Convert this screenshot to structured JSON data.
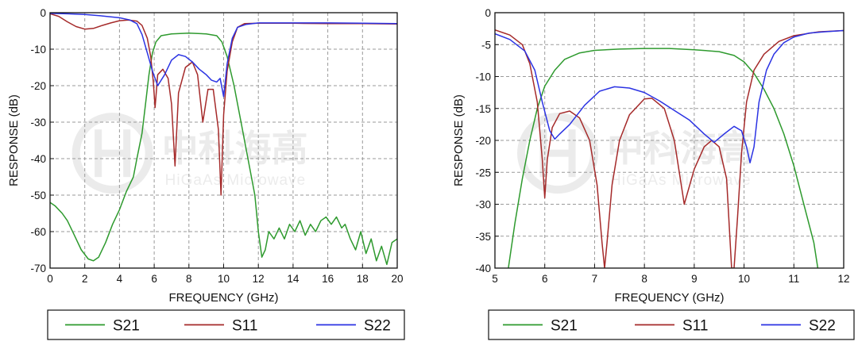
{
  "chart_data": [
    {
      "type": "line",
      "xlabel": "FREQUENCY (GHz)",
      "ylabel": "RESPONSE (dB)",
      "xlim": [
        0,
        20
      ],
      "ylim": [
        -70,
        0
      ],
      "xticks": [
        0,
        2,
        4,
        6,
        8,
        10,
        12,
        14,
        16,
        18,
        20
      ],
      "yticks": [
        0,
        -10,
        -20,
        -30,
        -40,
        -50,
        -60,
        -70
      ],
      "grid": true,
      "legend_position": "bottom",
      "watermark": {
        "title": "中科海高",
        "subtitle": "HiGaAs Microwave"
      },
      "series": [
        {
          "name": "S21",
          "color": "#2e9a2e",
          "points": [
            [
              0,
              -52
            ],
            [
              0.3,
              -53
            ],
            [
              0.7,
              -55
            ],
            [
              1.0,
              -57
            ],
            [
              1.4,
              -61
            ],
            [
              1.8,
              -65
            ],
            [
              2.2,
              -67.5
            ],
            [
              2.5,
              -68
            ],
            [
              2.8,
              -67
            ],
            [
              3.2,
              -63
            ],
            [
              3.6,
              -58
            ],
            [
              4.0,
              -54
            ],
            [
              4.4,
              -49
            ],
            [
              4.8,
              -45
            ],
            [
              5.0,
              -40
            ],
            [
              5.3,
              -33
            ],
            [
              5.5,
              -25
            ],
            [
              5.7,
              -17
            ],
            [
              5.9,
              -11
            ],
            [
              6.1,
              -8
            ],
            [
              6.4,
              -6.3
            ],
            [
              7,
              -5.8
            ],
            [
              8,
              -5.6
            ],
            [
              9,
              -5.8
            ],
            [
              9.6,
              -6.3
            ],
            [
              9.9,
              -8
            ],
            [
              10.2,
              -12
            ],
            [
              10.6,
              -20
            ],
            [
              11.0,
              -30
            ],
            [
              11.4,
              -40
            ],
            [
              11.8,
              -50
            ],
            [
              12.0,
              -60
            ],
            [
              12.2,
              -67
            ],
            [
              12.4,
              -65
            ],
            [
              12.6,
              -60
            ],
            [
              12.9,
              -62
            ],
            [
              13.2,
              -59
            ],
            [
              13.5,
              -62
            ],
            [
              13.8,
              -58
            ],
            [
              14.1,
              -60
            ],
            [
              14.4,
              -57
            ],
            [
              14.7,
              -61
            ],
            [
              15.0,
              -58
            ],
            [
              15.3,
              -60
            ],
            [
              15.6,
              -57
            ],
            [
              15.9,
              -56
            ],
            [
              16.2,
              -58
            ],
            [
              16.5,
              -56
            ],
            [
              16.8,
              -59
            ],
            [
              17.0,
              -58
            ],
            [
              17.3,
              -62
            ],
            [
              17.6,
              -65
            ],
            [
              17.9,
              -60
            ],
            [
              18.2,
              -66
            ],
            [
              18.5,
              -62
            ],
            [
              18.8,
              -68
            ],
            [
              19.1,
              -64
            ],
            [
              19.4,
              -69
            ],
            [
              19.7,
              -63
            ],
            [
              20.0,
              -62
            ]
          ]
        },
        {
          "name": "S11",
          "color": "#a52a2a",
          "points": [
            [
              0,
              -0.3
            ],
            [
              0.5,
              -1
            ],
            [
              1,
              -2.5
            ],
            [
              1.5,
              -3.8
            ],
            [
              2,
              -4.5
            ],
            [
              2.5,
              -4.3
            ],
            [
              3,
              -3.5
            ],
            [
              3.5,
              -2.8
            ],
            [
              4,
              -2.2
            ],
            [
              4.5,
              -2
            ],
            [
              5,
              -2.3
            ],
            [
              5.3,
              -3.5
            ],
            [
              5.6,
              -7
            ],
            [
              5.8,
              -12
            ],
            [
              5.95,
              -19
            ],
            [
              6.05,
              -26
            ],
            [
              6.2,
              -17
            ],
            [
              6.5,
              -15.5
            ],
            [
              6.8,
              -18
            ],
            [
              7.0,
              -25
            ],
            [
              7.2,
              -42
            ],
            [
              7.4,
              -22
            ],
            [
              7.8,
              -15
            ],
            [
              8.2,
              -13.5
            ],
            [
              8.5,
              -17
            ],
            [
              8.8,
              -30
            ],
            [
              9.1,
              -21
            ],
            [
              9.4,
              -21
            ],
            [
              9.7,
              -32
            ],
            [
              9.85,
              -50
            ],
            [
              10.0,
              -28
            ],
            [
              10.2,
              -16
            ],
            [
              10.5,
              -8
            ],
            [
              10.8,
              -4
            ],
            [
              11.2,
              -3
            ],
            [
              12,
              -2.9
            ],
            [
              14,
              -2.9
            ],
            [
              16,
              -3
            ],
            [
              18,
              -3
            ],
            [
              20,
              -3.1
            ]
          ]
        },
        {
          "name": "S22",
          "color": "#2b33e3",
          "points": [
            [
              0,
              -0.2
            ],
            [
              1,
              -0.3
            ],
            [
              2,
              -0.5
            ],
            [
              3,
              -0.9
            ],
            [
              4,
              -1.4
            ],
            [
              4.6,
              -2
            ],
            [
              5.0,
              -3
            ],
            [
              5.3,
              -6
            ],
            [
              5.6,
              -11
            ],
            [
              5.9,
              -16
            ],
            [
              6.2,
              -20
            ],
            [
              6.6,
              -17
            ],
            [
              7.0,
              -13
            ],
            [
              7.4,
              -11.5
            ],
            [
              7.8,
              -12
            ],
            [
              8.2,
              -13.5
            ],
            [
              8.6,
              -15.5
            ],
            [
              9.0,
              -17
            ],
            [
              9.3,
              -18.5
            ],
            [
              9.6,
              -19
            ],
            [
              9.8,
              -18
            ],
            [
              10.0,
              -23
            ],
            [
              10.2,
              -14
            ],
            [
              10.5,
              -7
            ],
            [
              10.8,
              -4
            ],
            [
              11.3,
              -3.2
            ],
            [
              12,
              -2.8
            ],
            [
              14,
              -2.8
            ],
            [
              16,
              -2.8
            ],
            [
              18,
              -2.9
            ],
            [
              20,
              -3
            ]
          ]
        }
      ]
    },
    {
      "type": "line",
      "xlabel": "FREQUENCY (GHz)",
      "ylabel": "RESPONSE (dB)",
      "xlim": [
        5,
        12
      ],
      "ylim": [
        -40,
        0
      ],
      "xticks": [
        5,
        6,
        7,
        8,
        9,
        10,
        11,
        12
      ],
      "yticks": [
        0,
        -5,
        -10,
        -15,
        -20,
        -25,
        -30,
        -35,
        -40
      ],
      "grid": true,
      "legend_position": "bottom",
      "watermark": {
        "title": "中科海高",
        "subtitle": "HiGaAs Microwave"
      },
      "series": [
        {
          "name": "S21",
          "color": "#2e9a2e",
          "points": [
            [
              5.27,
              -40
            ],
            [
              5.4,
              -33
            ],
            [
              5.55,
              -26
            ],
            [
              5.7,
              -20
            ],
            [
              5.85,
              -15
            ],
            [
              6.0,
              -11.5
            ],
            [
              6.2,
              -9
            ],
            [
              6.4,
              -7.3
            ],
            [
              6.7,
              -6.3
            ],
            [
              7,
              -5.9
            ],
            [
              7.5,
              -5.7
            ],
            [
              8,
              -5.6
            ],
            [
              8.5,
              -5.6
            ],
            [
              9,
              -5.8
            ],
            [
              9.5,
              -6.1
            ],
            [
              9.8,
              -6.7
            ],
            [
              10.0,
              -7.7
            ],
            [
              10.2,
              -9.5
            ],
            [
              10.4,
              -12
            ],
            [
              10.6,
              -15
            ],
            [
              10.8,
              -19
            ],
            [
              11.0,
              -24
            ],
            [
              11.2,
              -30
            ],
            [
              11.4,
              -36
            ],
            [
              11.48,
              -40
            ]
          ]
        },
        {
          "name": "S11",
          "color": "#a52a2a",
          "points": [
            [
              5,
              -2.7
            ],
            [
              5.3,
              -3.5
            ],
            [
              5.55,
              -5
            ],
            [
              5.7,
              -8
            ],
            [
              5.85,
              -14
            ],
            [
              5.95,
              -23
            ],
            [
              6.0,
              -29
            ],
            [
              6.05,
              -23
            ],
            [
              6.15,
              -18
            ],
            [
              6.3,
              -15.8
            ],
            [
              6.5,
              -15.4
            ],
            [
              6.7,
              -16.5
            ],
            [
              6.9,
              -20
            ],
            [
              7.05,
              -27
            ],
            [
              7.15,
              -36
            ],
            [
              7.2,
              -40
            ],
            [
              7.25,
              -36
            ],
            [
              7.35,
              -27
            ],
            [
              7.5,
              -20
            ],
            [
              7.7,
              -16
            ],
            [
              8.0,
              -13.5
            ],
            [
              8.15,
              -13.4
            ],
            [
              8.4,
              -15
            ],
            [
              8.6,
              -20
            ],
            [
              8.8,
              -30
            ],
            [
              9.0,
              -24.5
            ],
            [
              9.2,
              -21
            ],
            [
              9.35,
              -20
            ],
            [
              9.5,
              -21
            ],
            [
              9.65,
              -26
            ],
            [
              9.75,
              -40
            ],
            [
              9.8,
              -40
            ],
            [
              9.87,
              -32
            ],
            [
              9.95,
              -22
            ],
            [
              10.05,
              -14
            ],
            [
              10.2,
              -9
            ],
            [
              10.4,
              -6.5
            ],
            [
              10.7,
              -4.5
            ],
            [
              11.0,
              -3.6
            ],
            [
              11.5,
              -3
            ],
            [
              12,
              -2.8
            ]
          ]
        },
        {
          "name": "S22",
          "color": "#2b33e3",
          "points": [
            [
              5,
              -3.3
            ],
            [
              5.3,
              -4.2
            ],
            [
              5.6,
              -6
            ],
            [
              5.8,
              -9
            ],
            [
              5.95,
              -14
            ],
            [
              6.1,
              -18.5
            ],
            [
              6.2,
              -19.8
            ],
            [
              6.3,
              -19
            ],
            [
              6.5,
              -17.5
            ],
            [
              6.8,
              -14.5
            ],
            [
              7.1,
              -12.3
            ],
            [
              7.4,
              -11.6
            ],
            [
              7.7,
              -11.8
            ],
            [
              8.0,
              -12.5
            ],
            [
              8.3,
              -13.8
            ],
            [
              8.6,
              -15.3
            ],
            [
              8.9,
              -16.8
            ],
            [
              9.2,
              -19
            ],
            [
              9.4,
              -20.3
            ],
            [
              9.6,
              -19
            ],
            [
              9.8,
              -17.8
            ],
            [
              9.95,
              -18.5
            ],
            [
              10.05,
              -21
            ],
            [
              10.12,
              -23.5
            ],
            [
              10.2,
              -21
            ],
            [
              10.3,
              -14
            ],
            [
              10.45,
              -9
            ],
            [
              10.6,
              -6.5
            ],
            [
              10.8,
              -4.7
            ],
            [
              11.0,
              -3.8
            ],
            [
              11.3,
              -3.2
            ],
            [
              11.6,
              -3
            ],
            [
              12,
              -2.8
            ]
          ]
        }
      ]
    }
  ]
}
